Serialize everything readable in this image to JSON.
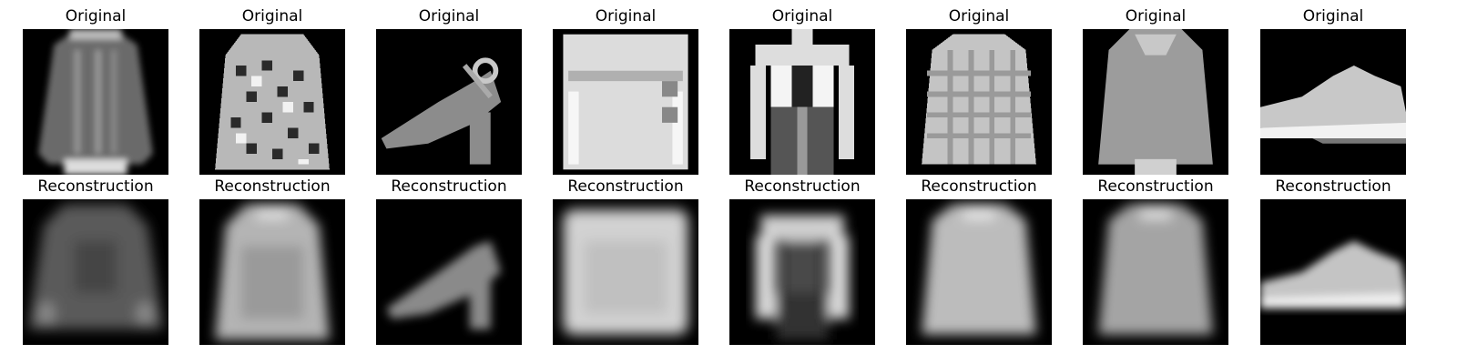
{
  "figure": {
    "rows": [
      {
        "row": "originals",
        "panels": [
          {
            "title": "Original",
            "subject": "long-sleeve top"
          },
          {
            "title": "Original",
            "subject": "patterned shirt"
          },
          {
            "title": "Original",
            "subject": "heeled sandal"
          },
          {
            "title": "Original",
            "subject": "bag"
          },
          {
            "title": "Original",
            "subject": "coat"
          },
          {
            "title": "Original",
            "subject": "plaid shirt"
          },
          {
            "title": "Original",
            "subject": "pullover"
          },
          {
            "title": "Original",
            "subject": "sneaker"
          }
        ]
      },
      {
        "row": "reconstructions",
        "panels": [
          {
            "title": "Reconstruction",
            "subject": "long-sleeve top"
          },
          {
            "title": "Reconstruction",
            "subject": "shirt"
          },
          {
            "title": "Reconstruction",
            "subject": "heeled sandal"
          },
          {
            "title": "Reconstruction",
            "subject": "bag"
          },
          {
            "title": "Reconstruction",
            "subject": "coat"
          },
          {
            "title": "Reconstruction",
            "subject": "shirt"
          },
          {
            "title": "Reconstruction",
            "subject": "pullover"
          },
          {
            "title": "Reconstruction",
            "subject": "sneaker"
          }
        ]
      }
    ]
  },
  "colors": {
    "background": "#000000",
    "foreground": "#ffffff",
    "page": "#ffffff"
  }
}
